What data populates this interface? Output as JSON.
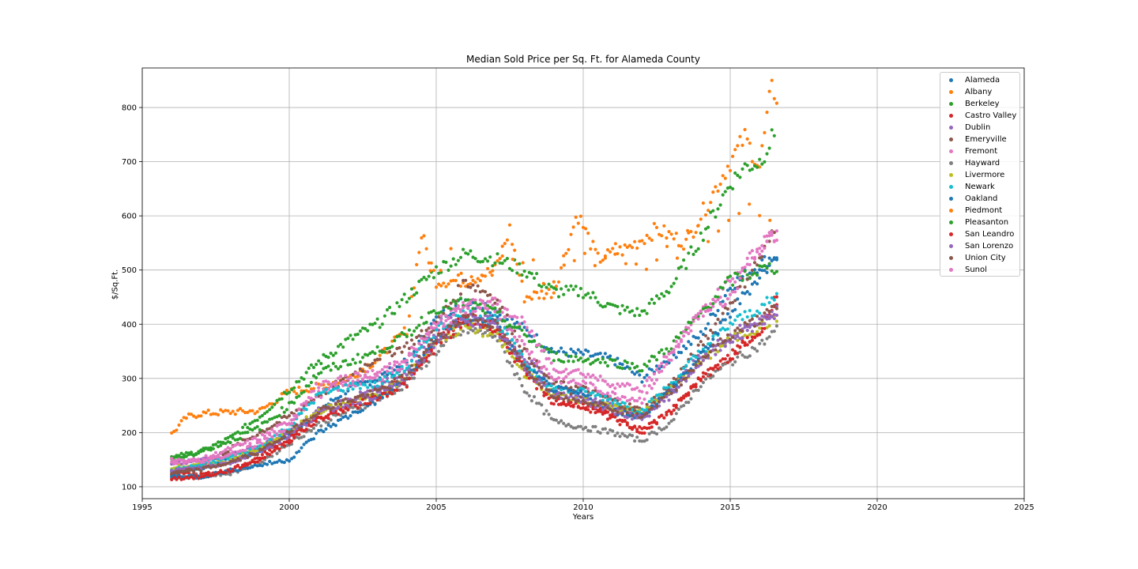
{
  "colors": {
    "Alameda": "#1f77b4",
    "Albany": "#ff7f0e",
    "Berkeley": "#2ca02c",
    "Castro Valley": "#d62728",
    "Dublin": "#9467bd",
    "Emeryville": "#8c564b",
    "Fremont": "#e377c2",
    "Hayward": "#7f7f7f",
    "Livermore": "#bcbd22",
    "Newark": "#17becf",
    "Oakland": "#1f77b4",
    "Piedmont": "#ff7f0e",
    "Pleasanton": "#2ca02c",
    "San Leandro": "#d62728",
    "San Lorenzo": "#9467bd",
    "Union City": "#8c564b",
    "Sunol": "#e377c2"
  },
  "chart_data": {
    "type": "scatter",
    "title": "Median Sold Price per Sq. Ft. for Alameda County",
    "xlabel": "Years",
    "ylabel": "$/Sq.Ft.",
    "xlim": [
      1995,
      2025
    ],
    "ylim": [
      78,
      873
    ],
    "x_ticks": [
      "1995",
      "2000",
      "2005",
      "2010",
      "2015",
      "2020",
      "2025"
    ],
    "y_ticks": [
      "100",
      "200",
      "300",
      "400",
      "500",
      "600",
      "700",
      "800"
    ],
    "grid": true,
    "legend_position": "top-right",
    "legend": [
      "Alameda",
      "Albany",
      "Berkeley",
      "Castro Valley",
      "Dublin",
      "Emeryville",
      "Fremont",
      "Hayward",
      "Livermore",
      "Newark",
      "Oakland",
      "Piedmont",
      "Pleasanton",
      "San Leandro",
      "San Lorenzo",
      "Union City",
      "Sunol"
    ],
    "series": [
      {
        "name": "Alameda",
        "x": [
          1996,
          1997,
          1998,
          1999,
          2000,
          2001,
          2002,
          2003,
          2004,
          2005,
          2006,
          2007,
          2008,
          2009,
          2010,
          2011,
          2012,
          2013,
          2014,
          2015,
          2016,
          2016.6
        ],
        "y": [
          128,
          135,
          150,
          165,
          195,
          240,
          280,
          300,
          330,
          410,
          445,
          425,
          390,
          350,
          345,
          335,
          300,
          340,
          380,
          470,
          510,
          530
        ]
      },
      {
        "name": "Albany",
        "x": [
          1996,
          1996.5,
          1997,
          1998,
          1999,
          2000,
          2001,
          2002,
          2003,
          2004,
          2004.5,
          2005,
          2006,
          2007,
          2007.5,
          2008,
          2009,
          2009.8,
          2010.5,
          2011.5,
          2012.5,
          2013.5,
          2014.5,
          2015,
          2015.5,
          2016,
          2016.4,
          2016.6
        ],
        "y": [
          197,
          228,
          235,
          238,
          240,
          275,
          285,
          300,
          335,
          390,
          565,
          480,
          480,
          500,
          575,
          450,
          460,
          605,
          520,
          540,
          575,
          550,
          650,
          700,
          745,
          690,
          835,
          820
        ]
      },
      {
        "name": "Berkeley",
        "x": [
          1996,
          1997,
          1998,
          1999,
          2000,
          2001,
          2002,
          2003,
          2004,
          2005,
          2006,
          2007,
          2008,
          2009,
          2010,
          2011,
          2012,
          2013,
          2014,
          2015,
          2015.5,
          2016,
          2016.5
        ],
        "y": [
          150,
          165,
          190,
          230,
          280,
          330,
          370,
          400,
          450,
          500,
          530,
          520,
          500,
          460,
          460,
          430,
          420,
          470,
          560,
          660,
          690,
          700,
          750
        ]
      },
      {
        "name": "Castro Valley",
        "x": [
          1996,
          1997,
          1998,
          1999,
          2000,
          2001,
          2002,
          2003,
          2004,
          2005,
          2006,
          2007,
          2008,
          2009,
          2010,
          2011,
          2012,
          2013,
          2014,
          2015,
          2016,
          2016.6
        ],
        "y": [
          125,
          122,
          130,
          155,
          190,
          225,
          250,
          275,
          300,
          370,
          410,
          400,
          320,
          260,
          250,
          225,
          205,
          240,
          300,
          340,
          390,
          450
        ]
      },
      {
        "name": "Dublin",
        "x": [
          1996,
          1997,
          1998,
          1999,
          2000,
          2001,
          2002,
          2003,
          2004,
          2005,
          2006,
          2007,
          2008,
          2009,
          2010,
          2011,
          2012,
          2013,
          2014,
          2015,
          2016,
          2016.6
        ],
        "y": [
          140,
          150,
          160,
          175,
          200,
          240,
          260,
          280,
          320,
          390,
          420,
          410,
          340,
          280,
          270,
          250,
          230,
          280,
          340,
          380,
          410,
          420
        ]
      },
      {
        "name": "Emeryville",
        "x": [
          1996,
          1997,
          1998,
          1999,
          2000,
          2001,
          2002,
          2003,
          2004,
          2005,
          2006,
          2007,
          2008,
          2009,
          2010,
          2011,
          2012,
          2013,
          2014,
          2015,
          2016,
          2016.5
        ],
        "y": [
          120,
          140,
          170,
          200,
          230,
          270,
          300,
          340,
          360,
          400,
          480,
          450,
          350,
          290,
          280,
          260,
          240,
          290,
          360,
          440,
          520,
          570
        ]
      },
      {
        "name": "Fremont",
        "x": [
          1996,
          1997,
          1998,
          1999,
          2000,
          2001,
          2002,
          2003,
          2004,
          2005,
          2006,
          2007,
          2008,
          2009,
          2010,
          2011,
          2012,
          2013,
          2014,
          2015,
          2016,
          2016.6
        ],
        "y": [
          145,
          150,
          170,
          190,
          220,
          270,
          290,
          300,
          330,
          400,
          440,
          430,
          360,
          300,
          290,
          270,
          260,
          340,
          420,
          480,
          540,
          570
        ]
      },
      {
        "name": "Hayward",
        "x": [
          1996,
          1997,
          1998,
          1999,
          2000,
          2001,
          2002,
          2003,
          2004,
          2005,
          2006,
          2007,
          2008,
          2009,
          2010,
          2011,
          2012,
          2013,
          2014,
          2015,
          2016,
          2016.6
        ],
        "y": [
          118,
          120,
          125,
          145,
          180,
          215,
          240,
          260,
          290,
          350,
          390,
          380,
          280,
          220,
          210,
          200,
          185,
          220,
          290,
          330,
          360,
          390
        ]
      },
      {
        "name": "Livermore",
        "x": [
          1996,
          1997,
          1998,
          1999,
          2000,
          2001,
          2002,
          2003,
          2004,
          2005,
          2006,
          2007,
          2008,
          2009,
          2010,
          2011,
          2012,
          2013,
          2014,
          2015,
          2016,
          2016.6
        ],
        "y": [
          135,
          140,
          150,
          170,
          200,
          240,
          255,
          270,
          300,
          370,
          395,
          380,
          310,
          270,
          260,
          245,
          240,
          280,
          330,
          370,
          395,
          410
        ]
      },
      {
        "name": "Newark",
        "x": [
          1996,
          1997,
          1998,
          1999,
          2000,
          2001,
          2002,
          2003,
          2004,
          2005,
          2006,
          2007,
          2008,
          2009,
          2010,
          2011,
          2012,
          2013,
          2014,
          2015,
          2016,
          2016.6
        ],
        "y": [
          130,
          140,
          155,
          175,
          210,
          270,
          285,
          290,
          320,
          390,
          420,
          410,
          330,
          280,
          275,
          260,
          240,
          290,
          350,
          400,
          430,
          450
        ]
      },
      {
        "name": "Oakland",
        "x": [
          1996,
          1997,
          1998,
          1999,
          2000,
          2001,
          2002,
          2003,
          2004,
          2005,
          2006,
          2007,
          2008,
          2009,
          2010,
          2011,
          2012,
          2013,
          2014,
          2015,
          2016,
          2016.6
        ],
        "y": [
          120,
          118,
          130,
          140,
          150,
          200,
          230,
          260,
          300,
          370,
          410,
          400,
          320,
          280,
          270,
          240,
          230,
          280,
          340,
          420,
          490,
          520
        ]
      },
      {
        "name": "Piedmont",
        "x": [
          2004.8,
          2008.5,
          2010.5,
          2012.2,
          2013.8,
          2014.8,
          2015.8,
          2016.5
        ],
        "y": [
          520,
          500,
          530,
          510,
          550,
          600,
          620,
          590
        ]
      },
      {
        "name": "Pleasanton",
        "x": [
          1996,
          1997,
          1998,
          1999,
          2000,
          2001,
          2002,
          2003,
          2004,
          2005,
          2006,
          2007,
          2008,
          2009,
          2010,
          2011,
          2012,
          2013,
          2014,
          2015,
          2016,
          2016.6
        ],
        "y": [
          155,
          165,
          185,
          210,
          250,
          310,
          330,
          350,
          380,
          430,
          440,
          420,
          380,
          340,
          335,
          330,
          320,
          360,
          420,
          480,
          500,
          505
        ]
      },
      {
        "name": "San Leandro",
        "x": [
          1996,
          1997,
          1998,
          1999,
          2000,
          2001,
          2002,
          2003,
          2004,
          2005,
          2006,
          2007,
          2008,
          2009,
          2010,
          2011,
          2012,
          2013,
          2014,
          2015,
          2016,
          2016.6
        ],
        "y": [
          115,
          118,
          130,
          150,
          185,
          225,
          245,
          265,
          290,
          360,
          405,
          395,
          310,
          255,
          250,
          230,
          200,
          240,
          300,
          340,
          390,
          430
        ]
      },
      {
        "name": "San Lorenzo",
        "x": [
          1996,
          1997,
          1998,
          1999,
          2000,
          2001,
          2002,
          2003,
          2004,
          2005,
          2006,
          2007,
          2008,
          2009,
          2010,
          2011,
          2012,
          2013,
          2014,
          2015,
          2016,
          2016.6
        ],
        "y": [
          130,
          135,
          145,
          165,
          195,
          235,
          255,
          270,
          300,
          370,
          410,
          395,
          320,
          270,
          260,
          240,
          225,
          270,
          330,
          370,
          400,
          425
        ]
      },
      {
        "name": "Union City",
        "x": [
          1996,
          1997,
          1998,
          1999,
          2000,
          2001,
          2002,
          2003,
          2004,
          2005,
          2006,
          2007,
          2008,
          2009,
          2010,
          2011,
          2012,
          2013,
          2014,
          2015,
          2016,
          2016.6
        ],
        "y": [
          125,
          132,
          145,
          165,
          200,
          240,
          260,
          275,
          305,
          375,
          415,
          400,
          320,
          270,
          262,
          245,
          232,
          275,
          335,
          380,
          410,
          430
        ]
      },
      {
        "name": "Sunol",
        "x": [
          1996,
          1997,
          1998,
          1999,
          2000,
          2001,
          2002,
          2003,
          2004,
          2005,
          2006,
          2007,
          2008,
          2009,
          2010,
          2011,
          2012,
          2013,
          2014,
          2015,
          2016,
          2016.6
        ],
        "y": [
          150,
          145,
          160,
          180,
          215,
          290,
          300,
          310,
          340,
          395,
          430,
          440,
          400,
          320,
          310,
          290,
          280,
          350,
          420,
          450,
          550,
          560
        ]
      }
    ]
  }
}
